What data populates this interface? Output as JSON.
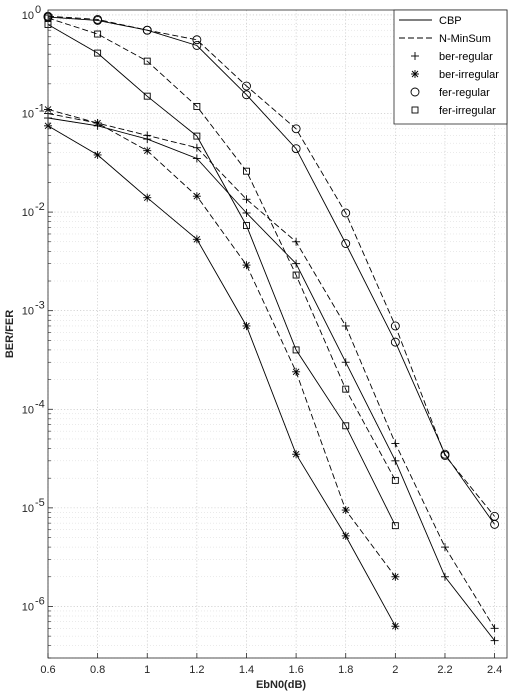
{
  "chart_data": {
    "type": "line",
    "title": "",
    "xlabel": "EbN0(dB)",
    "ylabel": "BER/FER",
    "xlim": [
      0.6,
      2.45
    ],
    "ylim": [
      3e-07,
      1
    ],
    "yscale": "log",
    "grid": "on (major and minor, dotted)",
    "legend_position": "top-right",
    "x_ticks": [
      "0.6",
      "0.8",
      "1",
      "1.2",
      "1.4",
      "1.6",
      "1.8",
      "2",
      "2.2",
      "2.4"
    ],
    "y_ticks": [
      {
        "base": "10",
        "exp": "0"
      },
      {
        "base": "10",
        "exp": "-1"
      },
      {
        "base": "10",
        "exp": "-2"
      },
      {
        "base": "10",
        "exp": "-3"
      },
      {
        "base": "10",
        "exp": "-4"
      },
      {
        "base": "10",
        "exp": "-5"
      },
      {
        "base": "10",
        "exp": "-6"
      }
    ],
    "legend": [
      {
        "label": "CBP",
        "kind": "line",
        "dash": "solid"
      },
      {
        "label": "N-MinSum",
        "kind": "line",
        "dash": "dashed"
      },
      {
        "label": "ber-regular",
        "kind": "marker",
        "marker": "plus"
      },
      {
        "label": "ber-irregular",
        "kind": "marker",
        "marker": "star"
      },
      {
        "label": "fer-regular",
        "kind": "marker",
        "marker": "circle"
      },
      {
        "label": "fer-irregular",
        "kind": "marker",
        "marker": "square"
      }
    ],
    "series": [
      {
        "algorithm": "CBP",
        "metric": "ber-regular",
        "dash": "solid",
        "marker": "plus",
        "x": [
          0.6,
          0.8,
          1.0,
          1.2,
          1.4,
          1.6,
          1.8,
          2.0,
          2.2,
          2.4
        ],
        "y": [
          0.09,
          0.075,
          0.055,
          0.035,
          0.0098,
          0.003,
          0.0003,
          3e-05,
          2e-06,
          4.5e-07
        ]
      },
      {
        "algorithm": "N-MinSum",
        "metric": "ber-regular",
        "dash": "dashed",
        "marker": "plus",
        "x": [
          0.6,
          0.8,
          1.0,
          1.2,
          1.4,
          1.6,
          1.8,
          2.0,
          2.2,
          2.4
        ],
        "y": [
          0.1,
          0.08,
          0.06,
          0.045,
          0.0135,
          0.005,
          0.0007,
          4.5e-05,
          4e-06,
          6e-07
        ]
      },
      {
        "algorithm": "CBP",
        "metric": "ber-irregular",
        "dash": "solid",
        "marker": "star",
        "x": [
          0.6,
          0.8,
          1.0,
          1.2,
          1.4,
          1.6,
          1.8,
          2.0
        ],
        "y": [
          0.075,
          0.038,
          0.014,
          0.0053,
          0.0007,
          3.5e-05,
          5.2e-06,
          6.3e-07
        ]
      },
      {
        "algorithm": "N-MinSum",
        "metric": "ber-irregular",
        "dash": "dashed",
        "marker": "star",
        "x": [
          0.6,
          0.8,
          1.0,
          1.2,
          1.4,
          1.6,
          1.8,
          2.0
        ],
        "y": [
          0.11,
          0.08,
          0.042,
          0.0145,
          0.0029,
          0.00024,
          9.5e-06,
          2e-06
        ]
      },
      {
        "algorithm": "CBP",
        "metric": "fer-regular",
        "dash": "solid",
        "marker": "circle",
        "x": [
          0.6,
          0.8,
          1.0,
          1.2,
          1.4,
          1.6,
          1.8,
          2.0,
          2.2,
          2.4
        ],
        "y": [
          0.95,
          0.88,
          0.7,
          0.49,
          0.155,
          0.044,
          0.0048,
          0.00048,
          3.5e-05,
          6.8e-06
        ]
      },
      {
        "algorithm": "N-MinSum",
        "metric": "fer-regular",
        "dash": "dashed",
        "marker": "circle",
        "x": [
          0.6,
          0.8,
          1.0,
          1.2,
          1.4,
          1.6,
          1.8,
          2.0,
          2.2,
          2.4
        ],
        "y": [
          0.97,
          0.9,
          0.7,
          0.56,
          0.19,
          0.07,
          0.0098,
          0.0007,
          3.4e-05,
          8.2e-06
        ]
      },
      {
        "algorithm": "CBP",
        "metric": "fer-irregular",
        "dash": "solid",
        "marker": "square",
        "x": [
          0.6,
          0.8,
          1.0,
          1.2,
          1.4,
          1.6,
          1.8,
          2.0
        ],
        "y": [
          0.8,
          0.41,
          0.15,
          0.059,
          0.0073,
          0.0004,
          6.8e-05,
          6.6e-06
        ]
      },
      {
        "algorithm": "N-MinSum",
        "metric": "fer-irregular",
        "dash": "dashed",
        "marker": "square",
        "x": [
          0.6,
          0.8,
          1.0,
          1.2,
          1.4,
          1.6,
          1.8,
          2.0
        ],
        "y": [
          0.93,
          0.64,
          0.34,
          0.118,
          0.026,
          0.0023,
          0.00016,
          1.9e-05
        ]
      }
    ]
  }
}
